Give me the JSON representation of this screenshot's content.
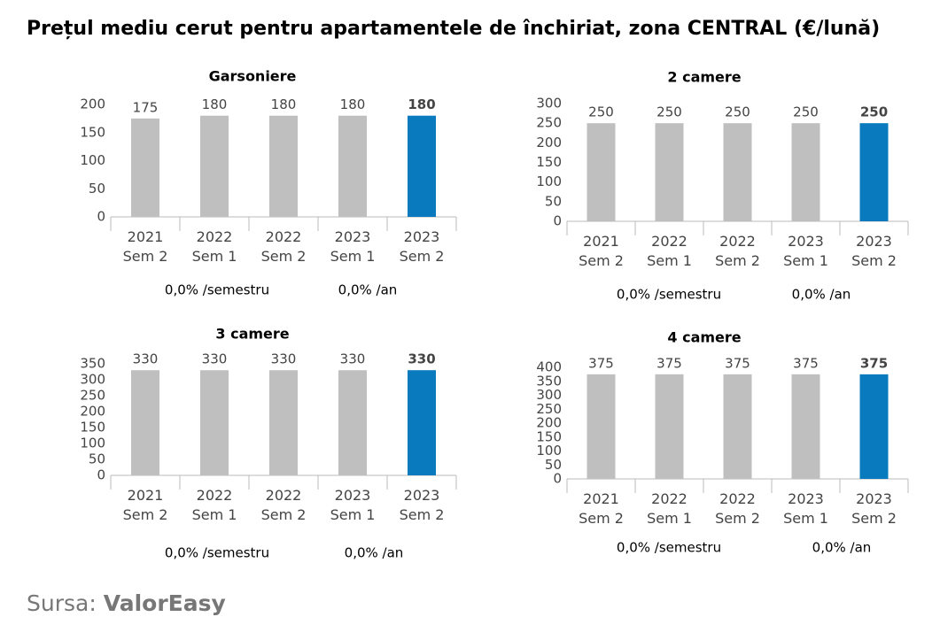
{
  "title": "Prețul mediu cerut pentru apartamentele de închiriat, zona CENTRAL (€/lună)",
  "source_label": "Sursa:",
  "source": "ValorEasy",
  "chart_data": [
    {
      "type": "bar",
      "title": "Garsoniere",
      "categories": [
        "2021 Sem 2",
        "2022 Sem 1",
        "2022 Sem 2",
        "2023 Sem 1",
        "2023 Sem 2"
      ],
      "values": [
        175,
        180,
        180,
        180,
        180
      ],
      "colors": [
        "#bfbfbf",
        "#bfbfbf",
        "#bfbfbf",
        "#bfbfbf",
        "#0a7abf"
      ],
      "ylim": [
        0,
        200
      ],
      "yticks": [
        0,
        50,
        100,
        150,
        200
      ],
      "grid": false,
      "annotations": [
        "0,0% /semestru",
        "0,0% /an"
      ]
    },
    {
      "type": "bar",
      "title": "2 camere",
      "categories": [
        "2021 Sem 2",
        "2022 Sem 1",
        "2022 Sem 2",
        "2023 Sem 1",
        "2023 Sem 2"
      ],
      "values": [
        250,
        250,
        250,
        250,
        250
      ],
      "colors": [
        "#bfbfbf",
        "#bfbfbf",
        "#bfbfbf",
        "#bfbfbf",
        "#0a7abf"
      ],
      "ylim": [
        0,
        300
      ],
      "yticks": [
        0,
        50,
        100,
        150,
        200,
        250,
        300
      ],
      "grid": false,
      "annotations": [
        "0,0% /semestru",
        "0,0% /an"
      ]
    },
    {
      "type": "bar",
      "title": "3 camere",
      "categories": [
        "2021 Sem 2",
        "2022 Sem 1",
        "2022 Sem 2",
        "2023 Sem 1",
        "2023 Sem 2"
      ],
      "values": [
        330,
        330,
        330,
        330,
        330
      ],
      "colors": [
        "#bfbfbf",
        "#bfbfbf",
        "#bfbfbf",
        "#bfbfbf",
        "#0a7abf"
      ],
      "ylim": [
        0,
        350
      ],
      "yticks": [
        0,
        50,
        100,
        150,
        200,
        250,
        300,
        350
      ],
      "grid": false,
      "annotations": [
        "0,0% /semestru",
        "0,0% /an"
      ]
    },
    {
      "type": "bar",
      "title": "4 camere",
      "categories": [
        "2021 Sem 2",
        "2022 Sem 1",
        "2022 Sem 2",
        "2023 Sem 1",
        "2023 Sem 2"
      ],
      "values": [
        375,
        375,
        375,
        375,
        375
      ],
      "colors": [
        "#bfbfbf",
        "#bfbfbf",
        "#bfbfbf",
        "#bfbfbf",
        "#0a7abf"
      ],
      "ylim": [
        0,
        400
      ],
      "yticks": [
        0,
        50,
        100,
        150,
        200,
        250,
        300,
        350,
        400
      ],
      "grid": false,
      "annotations": [
        "0,0% /semestru",
        "0,0% /an"
      ]
    }
  ]
}
